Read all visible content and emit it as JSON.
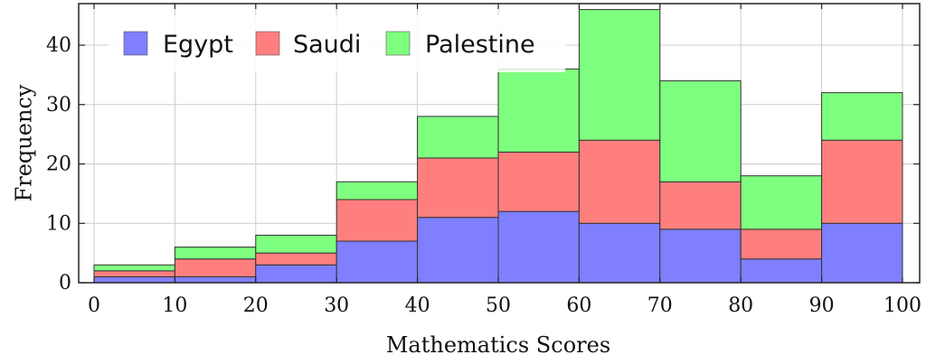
{
  "chart_data": {
    "type": "bar",
    "stacked": true,
    "xlabel": "Mathematics Scores",
    "ylabel": "Frequency",
    "xlim": [
      0,
      100
    ],
    "ylim": [
      0,
      47
    ],
    "x_ticks": [
      0,
      10,
      20,
      30,
      40,
      50,
      60,
      70,
      80,
      90,
      100
    ],
    "y_ticks": [
      0,
      10,
      20,
      30,
      40
    ],
    "bins": [
      [
        0,
        10
      ],
      [
        10,
        20
      ],
      [
        20,
        30
      ],
      [
        30,
        40
      ],
      [
        40,
        50
      ],
      [
        50,
        60
      ],
      [
        60,
        70
      ],
      [
        70,
        80
      ],
      [
        80,
        90
      ],
      [
        90,
        100
      ]
    ],
    "series": [
      {
        "name": "Egypt",
        "color": "#7f7fff",
        "values": [
          1,
          1,
          3,
          7,
          11,
          12,
          10,
          9,
          4,
          10
        ]
      },
      {
        "name": "Saudi",
        "color": "#ff7f7f",
        "values": [
          1,
          3,
          2,
          7,
          10,
          10,
          14,
          8,
          5,
          14
        ]
      },
      {
        "name": "Palestine",
        "color": "#7fff7f",
        "values": [
          1,
          2,
          3,
          3,
          7,
          14,
          22,
          17,
          9,
          8
        ]
      }
    ],
    "grid": true,
    "legend_position": "top-left"
  }
}
